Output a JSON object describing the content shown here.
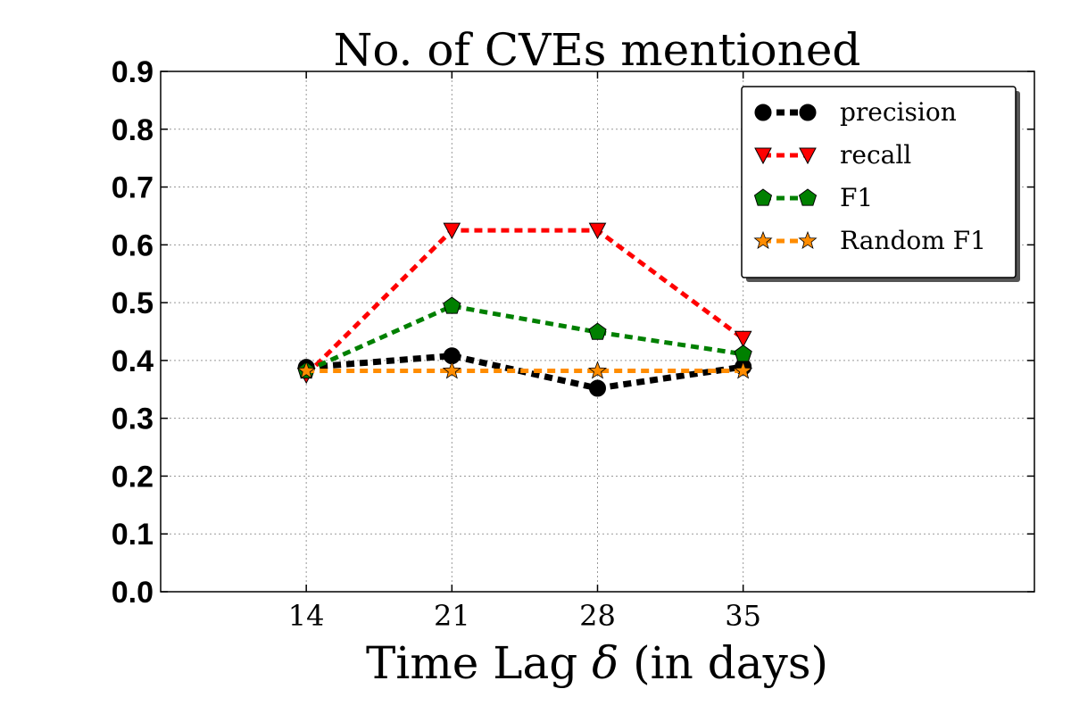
{
  "chart_data": {
    "type": "line",
    "title": "No. of CVEs mentioned",
    "xlabel_prefix": "Time Lag ",
    "xlabel_symbol": "δ",
    "xlabel_suffix": " (in days)",
    "ylabel": "",
    "x": [
      14,
      21,
      28,
      35
    ],
    "xlim": [
      7,
      49
    ],
    "ylim": [
      0.0,
      0.9
    ],
    "yticks": [
      "0.0",
      "0.1",
      "0.2",
      "0.3",
      "0.4",
      "0.5",
      "0.6",
      "0.7",
      "0.8",
      "0.9"
    ],
    "xticks": [
      "14",
      "21",
      "28",
      "35"
    ],
    "grid": true,
    "legend_position": "top-right",
    "series": [
      {
        "name": "precision",
        "values": [
          0.388,
          0.408,
          0.352,
          0.389
        ],
        "color": "#000000",
        "marker": "circle"
      },
      {
        "name": "recall",
        "values": [
          0.375,
          0.625,
          0.625,
          0.438
        ],
        "color": "#ff0000",
        "marker": "triangle-down"
      },
      {
        "name": "F1",
        "values": [
          0.382,
          0.494,
          0.449,
          0.411
        ],
        "color": "#008000",
        "marker": "pentagon"
      },
      {
        "name": "Random F1",
        "values": [
          0.382,
          0.382,
          0.382,
          0.382
        ],
        "color": "#ff8c00",
        "marker": "star"
      }
    ]
  }
}
